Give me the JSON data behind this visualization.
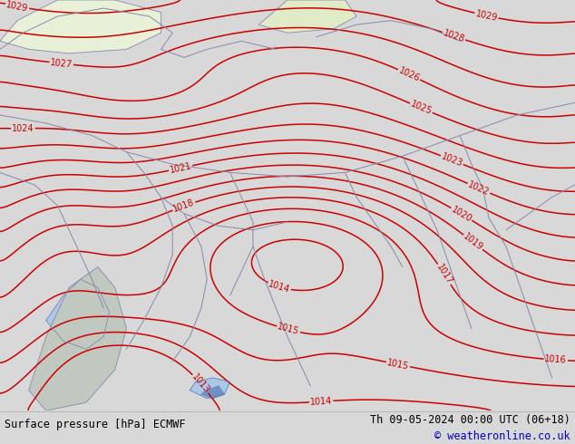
{
  "title_left": "Surface pressure [hPa] ECMWF",
  "title_right": "Th 09-05-2024 00:00 UTC (06+18)",
  "copyright": "© weatheronline.co.uk",
  "bg_color": "#c8f0a0",
  "land_color": "#c8f0a0",
  "water_color": "#aec6e8",
  "contour_color": "#cc0000",
  "border_color": "#8888aa",
  "contour_levels": [
    1013,
    1014,
    1015,
    1016,
    1017,
    1018,
    1019,
    1020,
    1021,
    1022,
    1023,
    1024,
    1025,
    1026,
    1027,
    1028,
    1029
  ],
  "label_fontsize": 7,
  "contour_linewidth": 1.1,
  "footer_fontsize": 8.5,
  "footer_color": "#000000",
  "copyright_color": "#0000bb",
  "footer_bg": "#d8d8d8"
}
